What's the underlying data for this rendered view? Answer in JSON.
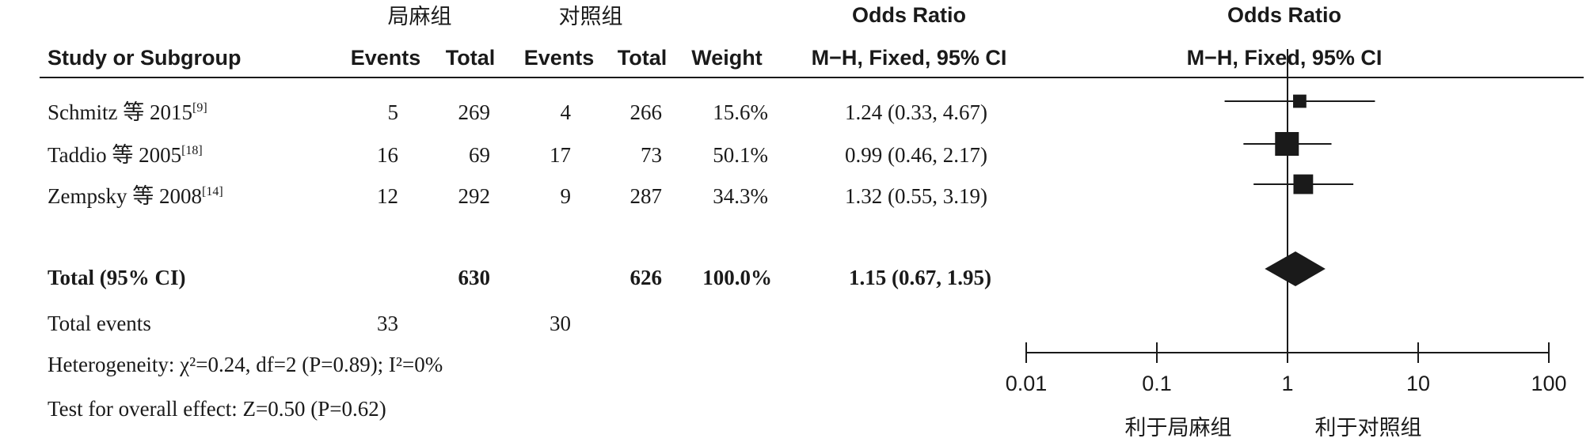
{
  "groups": {
    "treatment": "局麻组",
    "control": "对照组"
  },
  "headers": {
    "study": "Study or Subgroup",
    "events": "Events",
    "total": "Total",
    "weight": "Weight",
    "or_title": "Odds Ratio",
    "or_method": "M−H, Fixed, 95% CI"
  },
  "rows": [
    {
      "study": "Schmitz 等 2015",
      "ref": "[9]",
      "e1": "5",
      "t1": "269",
      "e2": "4",
      "t2": "266",
      "weight": "15.6%",
      "ci": "1.24 (0.33, 4.67)"
    },
    {
      "study": "Taddio 等 2005",
      "ref": "[18]",
      "e1": "16",
      "t1": "69",
      "e2": "17",
      "t2": "73",
      "weight": "50.1%",
      "ci": "0.99 (0.46, 2.17)"
    },
    {
      "study": "Zempsky 等 2008",
      "ref": "[14]",
      "e1": "12",
      "t1": "292",
      "e2": "9",
      "t2": "287",
      "weight": "34.3%",
      "ci": "1.32 (0.55, 3.19)"
    }
  ],
  "total": {
    "label": "Total (95% CI)",
    "t1": "630",
    "t2": "626",
    "weight": "100.0%",
    "ci": "1.15 (0.67, 1.95)"
  },
  "events_total": {
    "label": "Total events",
    "e1": "33",
    "e2": "30"
  },
  "footnotes": {
    "heterogeneity": "Heterogeneity: χ²=0.24, df=2 (P=0.89); I²=0%",
    "overall": "Test for overall effect: Z=0.50 (P=0.62)"
  },
  "axis_favours": {
    "left": "利于局麻组",
    "right": "利于对照组"
  },
  "chart_data": {
    "type": "forest",
    "x_scale": "log",
    "xlim": [
      0.01,
      100
    ],
    "x_ticks": [
      0.01,
      0.1,
      1,
      10,
      100
    ],
    "x_tick_labels": [
      "0.01",
      "0.1",
      "1",
      "10",
      "100"
    ],
    "reference_line": 1,
    "studies": [
      {
        "name": "Schmitz 等 2015",
        "or": 1.24,
        "lower": 0.33,
        "upper": 4.67,
        "weight": 15.6
      },
      {
        "name": "Taddio 等 2005",
        "or": 0.99,
        "lower": 0.46,
        "upper": 2.17,
        "weight": 50.1
      },
      {
        "name": "Zempsky 等 2008",
        "or": 1.32,
        "lower": 0.55,
        "upper": 3.19,
        "weight": 34.3
      }
    ],
    "pooled": {
      "name": "Total (95% CI)",
      "or": 1.15,
      "lower": 0.67,
      "upper": 1.95
    },
    "colors": {
      "ink": "#1a1a1a"
    }
  }
}
